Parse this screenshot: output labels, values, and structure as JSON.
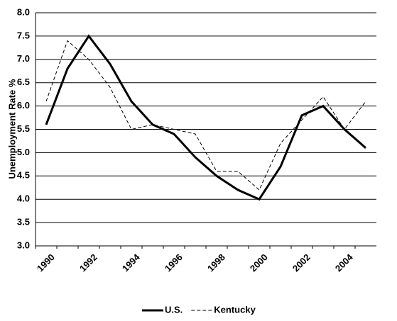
{
  "chart_data": {
    "type": "line",
    "y_label": "Unemployment Rate %",
    "categories": [
      "1990",
      null,
      "1992",
      null,
      "1994",
      null,
      "1996",
      null,
      "1998",
      null,
      "2000",
      null,
      "2002",
      null,
      "2004",
      null
    ],
    "series": [
      {
        "name": "U.S.",
        "color": "#000000",
        "values": [
          5.6,
          6.8,
          7.5,
          6.9,
          6.1,
          5.6,
          5.4,
          4.9,
          4.5,
          4.2,
          4.0,
          4.7,
          5.8,
          6.0,
          5.5,
          5.1
        ]
      },
      {
        "name": "Kentucky",
        "color": "#000000",
        "values": [
          6.1,
          7.4,
          7.0,
          6.4,
          5.5,
          5.6,
          5.5,
          5.4,
          4.6,
          4.6,
          4.2,
          5.2,
          5.7,
          6.2,
          5.5,
          6.1
        ]
      }
    ],
    "ylim": [
      3.0,
      8.0
    ],
    "yticks": [
      {
        "value": 3,
        "label": "3.0"
      },
      3.5,
      {
        "value": 4,
        "label": "4.0"
      },
      4.5,
      {
        "value": 5,
        "label": "5.0"
      },
      5.5,
      {
        "value": 6,
        "label": "6.0"
      },
      6.5,
      {
        "value": 7,
        "label": "7.0"
      },
      7.5,
      {
        "value": 8,
        "label": "8.0"
      }
    ],
    "grid": true,
    "legend": "bottom"
  }
}
